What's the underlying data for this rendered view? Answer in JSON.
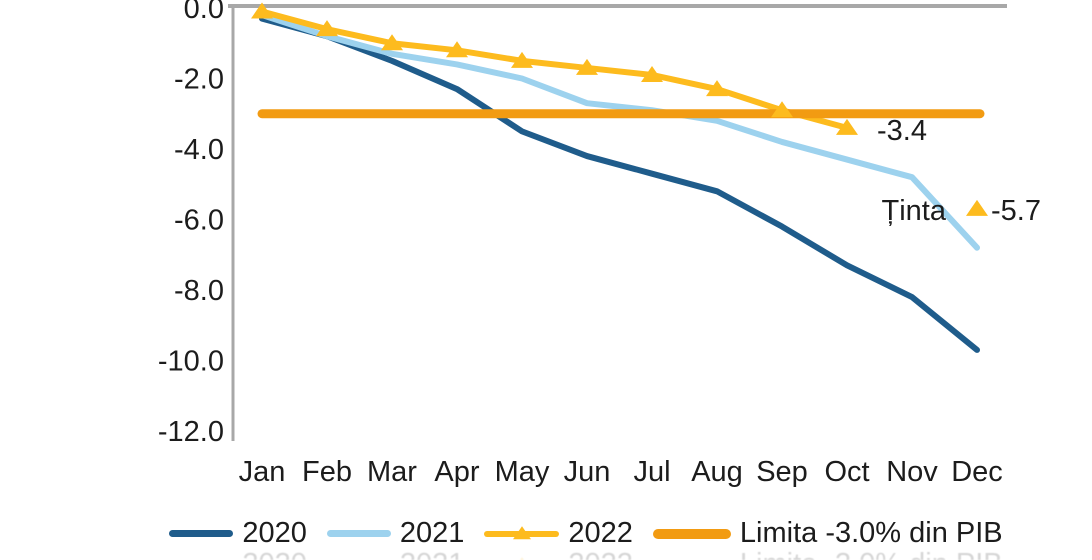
{
  "chart_data": {
    "type": "line",
    "title": "",
    "x_axis": {
      "months": [
        "Jan",
        "Feb",
        "Mar",
        "Apr",
        "May",
        "Jun",
        "Jul",
        "Aug",
        "Sep",
        "Oct",
        "Nov",
        "Dec"
      ]
    },
    "y_axis": {
      "range": [
        -12.0,
        0.0
      ],
      "ticks": [
        {
          "label": "0.0",
          "value": 0
        },
        {
          "label": "-2.0",
          "value": -2
        },
        {
          "label": "-4.0",
          "value": -4
        },
        {
          "label": "-6.0",
          "value": -6
        },
        {
          "label": "-8.0",
          "value": -8
        },
        {
          "label": "-10.0",
          "value": -10
        },
        {
          "label": "-12.0",
          "value": -12
        }
      ]
    },
    "series": [
      {
        "name": "2020",
        "color": "#1F5C8B",
        "marker": "none",
        "values": [
          -0.3,
          -0.8,
          -1.5,
          -2.3,
          -3.5,
          -4.2,
          -4.7,
          -5.2,
          -6.2,
          -7.3,
          -8.2,
          -9.7
        ]
      },
      {
        "name": "2021",
        "color": "#9DD2EE",
        "marker": "none",
        "values": [
          -0.2,
          -0.8,
          -1.3,
          -1.6,
          -2.0,
          -2.7,
          -2.9,
          -3.2,
          -3.8,
          -4.3,
          -4.8,
          -6.8
        ]
      },
      {
        "name": "2022",
        "color": "#FDBB1E",
        "marker": "triangle",
        "values": [
          -0.1,
          -0.6,
          -1.0,
          -1.2,
          -1.5,
          -1.7,
          -1.9,
          -2.3,
          -2.9,
          -3.4,
          null,
          null
        ]
      }
    ],
    "limit_line": {
      "label": "Limita -3.0% din PIB",
      "value": -3.0,
      "color": "#F29B12"
    },
    "annotations": {
      "oct_2022_label": "-3.4"
    },
    "target": {
      "label": "Ținta",
      "value": -5.7,
      "value_label": "-5.7",
      "month_index": 11,
      "color": "#FDBB1E"
    },
    "legend_position": "bottom",
    "grid": false
  }
}
